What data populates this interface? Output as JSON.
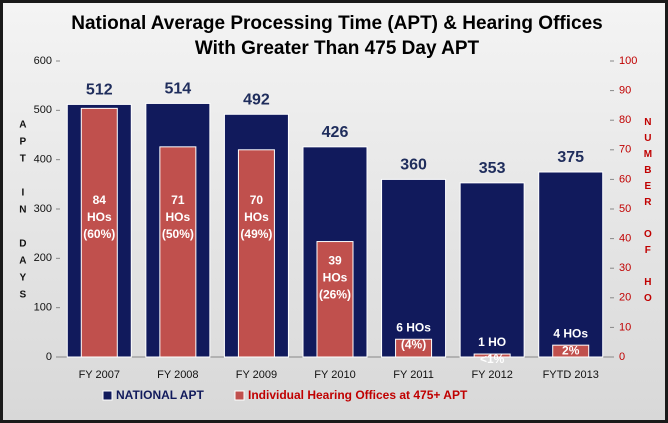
{
  "chart_data": {
    "type": "bar",
    "title": "National Average Processing Time (APT) & Hearing Offices With Greater Than 475 Day APT",
    "y_label": "APT IN DAYS",
    "y2_label": "NUMBER OF HO",
    "categories": [
      "FY 2007",
      "FY 2008",
      "FY 2009",
      "FY 2010",
      "FY 2011",
      "FY 2012",
      "FYTD 2013"
    ],
    "series": [
      {
        "name": "NATIONAL APT",
        "color": "#111a5c",
        "values": [
          512,
          514,
          492,
          426,
          360,
          353,
          375
        ]
      },
      {
        "name": "Individual Hearing Offices at 475+ APT",
        "color": "#c0504d",
        "axis": "y2",
        "values": [
          84,
          71,
          70,
          39,
          6,
          1,
          4
        ],
        "value_labels": [
          [
            "84",
            "HOs",
            "(60%)"
          ],
          [
            "71",
            "HOs",
            "(50%)"
          ],
          [
            "70",
            "HOs",
            "(49%)"
          ],
          [
            "39",
            "HOs",
            "(26%)"
          ],
          [
            "6 HOs",
            "(4%)"
          ],
          [
            "1 HO",
            "<1%"
          ],
          [
            "4 HOs",
            "2%"
          ]
        ]
      }
    ],
    "ylim": [
      0,
      600
    ],
    "yticks": [
      0,
      100,
      200,
      300,
      400,
      500,
      600
    ],
    "y2lim": [
      0,
      100
    ],
    "y2ticks": [
      0,
      10,
      20,
      30,
      40,
      50,
      60,
      70,
      80,
      90,
      100
    ],
    "grid": false,
    "legend": "bottom"
  }
}
